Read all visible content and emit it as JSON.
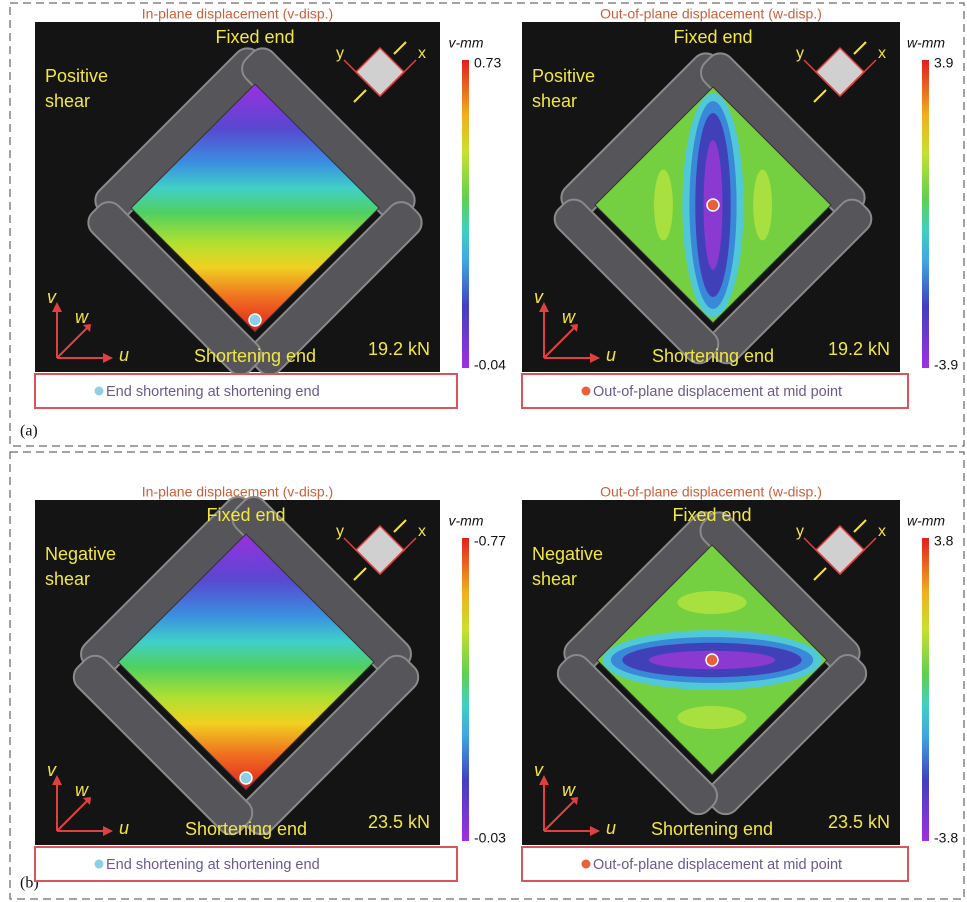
{
  "panels": [
    {
      "label": "(a)",
      "subpanels": [
        {
          "title": "In-plane displacement  (v-disp.)",
          "shear": [
            "Positive",
            "shear"
          ],
          "fixed": "Fixed end",
          "shortening": "Shortening end",
          "load": "19.2 kN",
          "axes": {
            "v": "v",
            "w": "w",
            "u": "u"
          },
          "inset": {
            "y": "y",
            "x": "x"
          },
          "colorbar": {
            "unit": "v-mm",
            "max": "0.73",
            "min": "-0.04"
          },
          "legend": "End shortening at shortening end"
        },
        {
          "title": "Out-of-plane displacement  (w-disp.)",
          "shear": [
            "Positive",
            "shear"
          ],
          "fixed": "Fixed end",
          "shortening": "Shortening end",
          "load": "19.2 kN",
          "axes": {
            "v": "v",
            "w": "w",
            "u": "u"
          },
          "inset": {
            "y": "y",
            "x": "x"
          },
          "colorbar": {
            "unit": "w-mm",
            "max": "3.9",
            "min": "-3.9"
          },
          "legend": "Out-of-plane displacement at mid point"
        }
      ]
    },
    {
      "label": "(b)",
      "subpanels": [
        {
          "title": "In-plane displacement  (v-disp.)",
          "shear": [
            "Negative",
            "shear"
          ],
          "fixed": "Fixed end",
          "shortening": "Shortening end",
          "load": "23.5 kN",
          "axes": {
            "v": "v",
            "w": "w",
            "u": "u"
          },
          "inset": {
            "y": "y",
            "x": "x"
          },
          "colorbar": {
            "unit": "v-mm",
            "max": "-0.77",
            "min": "-0.03"
          },
          "legend": "End shortening at shortening end"
        },
        {
          "title": "Out-of-plane displacement  (w-disp.)",
          "shear": [
            "Negative",
            "shear"
          ],
          "fixed": "Fixed end",
          "shortening": "Shortening end",
          "load": "23.5 kN",
          "axes": {
            "v": "v",
            "w": "w",
            "u": "u"
          },
          "inset": {
            "y": "y",
            "x": "x"
          },
          "colorbar": {
            "unit": "w-mm",
            "max": "3.8",
            "min": "-3.8"
          },
          "legend": "Out-of-plane displacement at mid point"
        }
      ]
    }
  ]
}
